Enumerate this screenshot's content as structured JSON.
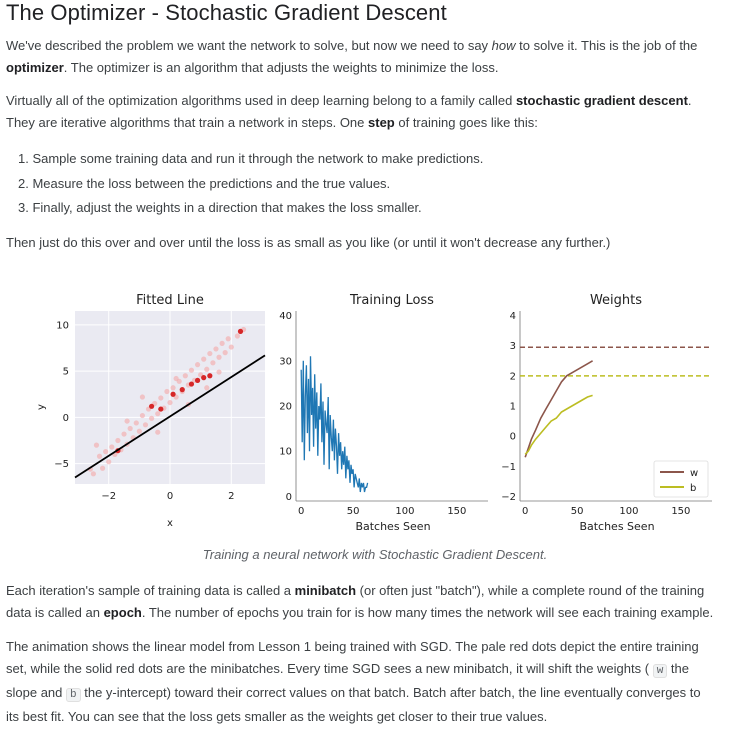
{
  "title": "The Optimizer - Stochastic Gradient Descent",
  "para1": {
    "a": "We've described the problem we want the network to solve, but now we need to say ",
    "b": "how",
    "c": " to solve it. This is the job of the",
    "d": "optimizer",
    "e": ". The optimizer is an algorithm that adjusts the weights to minimize the loss."
  },
  "para2": {
    "a": "Virtually all of the optimization algorithms used in deep learning belong to a family called ",
    "b": "stochastic gradient descent",
    "c": ".",
    "d": "They are iterative algorithms that train a network in steps. One ",
    "e": "step",
    "f": " of training goes like this:"
  },
  "steps": [
    "1. Sample some training data and run it through the network to make predictions.",
    "2. Measure the loss between the predictions and the true values.",
    "3. Finally, adjust the weights in a direction that makes the loss smaller."
  ],
  "para3": "Then just do this over and over until the loss is as small as you like (or until it won't decrease any further.)",
  "caption": "Training a neural network with Stochastic Gradient Descent.",
  "para4": {
    "a": "Each iteration's sample of training data is called a ",
    "b": "minibatch",
    "c": " (or often just \"batch\"), while a complete round of the training",
    "d": "data is called an ",
    "e": "epoch",
    "f": ". The number of epochs you train for is how many times the network will see each training example."
  },
  "para5": {
    "a": "The animation shows the linear model from Lesson 1 being trained with SGD. The pale red dots depict the entire training",
    "b": "set, while the solid red dots are the minibatches. Every time SGD sees a new minibatch, it will shift the weights (",
    "w": "w",
    "c": " the",
    "d": "slope and ",
    "bcode": "b",
    "e": " the y-intercept) toward their correct values on that batch. Batch after batch, the line eventually converges to",
    "f": "its best fit. You can see that the loss gets smaller as the weights get closer to their true values."
  },
  "colors": {
    "scatter_pale": "#f4a6a6",
    "scatter_solid": "#d62728",
    "fit_line": "#000000",
    "loss": "#1f77b4",
    "w": "#8c564b",
    "b": "#bcbd22"
  },
  "chart_data": [
    {
      "type": "scatter",
      "title": "Fitted Line",
      "xlabel": "x",
      "ylabel": "y",
      "xlim": [
        -3.1,
        3.1
      ],
      "ylim": [
        -7.2,
        11.5
      ],
      "xticks": [
        -2,
        0,
        2
      ],
      "yticks": [
        -5,
        0,
        5,
        10
      ],
      "series": [
        {
          "values": [
            [
              -2.6,
              -5.6
            ],
            [
              -2.5,
              -6.1
            ],
            [
              -2.3,
              -4.2
            ],
            [
              -2.2,
              -5.5
            ],
            [
              -2.1,
              -3.7
            ],
            [
              -2.0,
              -4.8
            ],
            [
              -1.9,
              -3.2
            ],
            [
              -1.8,
              -4.0
            ],
            [
              -1.7,
              -2.5
            ],
            [
              -1.6,
              -3.5
            ],
            [
              -1.5,
              -1.8
            ],
            [
              -1.4,
              -2.9
            ],
            [
              -1.3,
              -1.2
            ],
            [
              -1.2,
              -2.2
            ],
            [
              -1.1,
              -0.6
            ],
            [
              -1.0,
              -1.5
            ],
            [
              -0.9,
              0.2
            ],
            [
              -0.8,
              -0.8
            ],
            [
              -0.7,
              0.9
            ],
            [
              -0.6,
              -0.1
            ],
            [
              -0.5,
              1.5
            ],
            [
              -0.4,
              0.4
            ],
            [
              -0.3,
              2.1
            ],
            [
              -0.2,
              1.0
            ],
            [
              -0.1,
              2.8
            ],
            [
              0.0,
              1.6
            ],
            [
              0.1,
              3.2
            ],
            [
              0.2,
              2.2
            ],
            [
              0.3,
              3.9
            ],
            [
              0.4,
              2.8
            ],
            [
              0.5,
              4.5
            ],
            [
              0.6,
              3.5
            ],
            [
              0.7,
              5.1
            ],
            [
              0.8,
              4.0
            ],
            [
              0.9,
              5.7
            ],
            [
              1.0,
              4.6
            ],
            [
              1.1,
              6.3
            ],
            [
              1.2,
              5.2
            ],
            [
              1.3,
              6.9
            ],
            [
              1.4,
              5.9
            ],
            [
              1.5,
              7.4
            ],
            [
              1.6,
              6.5
            ],
            [
              1.7,
              8.0
            ],
            [
              1.8,
              7.0
            ],
            [
              1.9,
              8.5
            ],
            [
              2.0,
              7.6
            ],
            [
              2.2,
              8.8
            ],
            [
              2.4,
              9.5
            ],
            [
              -0.4,
              -1.6
            ],
            [
              0.6,
              1.4
            ],
            [
              1.2,
              3.2
            ],
            [
              -1.4,
              -0.4
            ],
            [
              0.2,
              4.2
            ],
            [
              -2.4,
              -3.0
            ],
            [
              1.6,
              4.9
            ],
            [
              -0.9,
              2.2
            ]
          ]
        },
        {
          "values": [
            [
              -1.7,
              -3.6
            ],
            [
              -0.6,
              1.2
            ],
            [
              -0.3,
              0.9
            ],
            [
              0.1,
              2.5
            ],
            [
              0.4,
              3.0
            ],
            [
              0.7,
              3.6
            ],
            [
              0.9,
              4.0
            ],
            [
              1.1,
              4.3
            ],
            [
              1.3,
              4.5
            ],
            [
              2.3,
              9.3
            ]
          ]
        }
      ],
      "fit_line": {
        "x": [
          -3.1,
          3.1
        ],
        "y": [
          -6.5,
          6.7
        ]
      }
    },
    {
      "type": "line",
      "title": "Training Loss",
      "xlabel": "Batches Seen",
      "ylabel": "",
      "xlim": [
        -5,
        180
      ],
      "ylim": [
        -1,
        41
      ],
      "xticks": [
        0,
        50,
        100,
        150
      ],
      "yticks": [
        0,
        10,
        20,
        30,
        40
      ],
      "series": [
        {
          "x": [
            0,
            1,
            2,
            3,
            4,
            5,
            6,
            7,
            8,
            9,
            10,
            11,
            12,
            13,
            14,
            15,
            16,
            17,
            18,
            19,
            20,
            21,
            22,
            23,
            24,
            25,
            26,
            27,
            28,
            29,
            30,
            31,
            32,
            33,
            34,
            35,
            36,
            37,
            38,
            39,
            40,
            41,
            42,
            43,
            44,
            45,
            46,
            47,
            48,
            49,
            50,
            51,
            52,
            53,
            54,
            55,
            56,
            57,
            58,
            59,
            60,
            61,
            62,
            63,
            64
          ],
          "y": [
            28,
            12,
            30,
            8,
            22,
            29,
            14,
            26,
            10,
            31,
            18,
            24,
            11,
            27,
            15,
            23,
            9,
            20,
            17,
            25,
            12,
            21,
            7,
            19,
            16,
            14,
            22,
            6,
            18,
            13,
            10,
            17,
            8,
            15,
            11,
            5,
            14,
            9,
            12,
            6,
            10,
            7,
            11,
            4,
            9,
            6,
            8,
            3,
            7,
            5,
            6,
            2,
            5,
            4,
            3,
            2,
            4,
            1,
            3,
            2,
            3,
            1,
            2,
            2,
            3
          ]
        }
      ]
    },
    {
      "type": "line",
      "title": "Weights",
      "xlabel": "Batches Seen",
      "ylabel": "",
      "xlim": [
        -5,
        180
      ],
      "ylim": [
        -2.15,
        4.15
      ],
      "xticks": [
        0,
        50,
        100,
        150
      ],
      "yticks": [
        -2,
        -1,
        0,
        1,
        2,
        3,
        4
      ],
      "legend_position": "lower-right",
      "series": [
        {
          "name": "w",
          "x": [
            0,
            3,
            6,
            10,
            15,
            20,
            25,
            30,
            35,
            40,
            45,
            50,
            55,
            60,
            65
          ],
          "y": [
            -0.7,
            -0.4,
            -0.1,
            0.2,
            0.6,
            0.9,
            1.2,
            1.5,
            1.8,
            2.0,
            2.1,
            2.2,
            2.3,
            2.4,
            2.5
          ]
        },
        {
          "name": "b",
          "x": [
            0,
            3,
            6,
            10,
            15,
            20,
            25,
            30,
            35,
            40,
            45,
            50,
            55,
            60,
            65
          ],
          "y": [
            -0.6,
            -0.5,
            -0.3,
            -0.1,
            0.1,
            0.3,
            0.5,
            0.6,
            0.8,
            0.9,
            1.0,
            1.1,
            1.2,
            1.3,
            1.35
          ]
        }
      ],
      "reference_lines": [
        {
          "name": "w",
          "y": 2.95
        },
        {
          "name": "b",
          "y": 2.0
        }
      ]
    }
  ]
}
